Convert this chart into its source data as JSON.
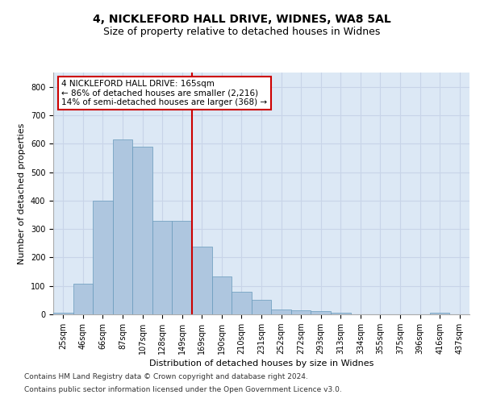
{
  "title": "4, NICKLEFORD HALL DRIVE, WIDNES, WA8 5AL",
  "subtitle": "Size of property relative to detached houses in Widnes",
  "xlabel": "Distribution of detached houses by size in Widnes",
  "ylabel": "Number of detached properties",
  "categories": [
    "25sqm",
    "46sqm",
    "66sqm",
    "87sqm",
    "107sqm",
    "128sqm",
    "149sqm",
    "169sqm",
    "190sqm",
    "210sqm",
    "231sqm",
    "252sqm",
    "272sqm",
    "293sqm",
    "313sqm",
    "334sqm",
    "355sqm",
    "375sqm",
    "396sqm",
    "416sqm",
    "437sqm"
  ],
  "values": [
    5,
    107,
    400,
    615,
    590,
    328,
    328,
    237,
    133,
    78,
    50,
    18,
    13,
    12,
    5,
    0,
    0,
    0,
    0,
    7,
    0
  ],
  "bar_color": "#aec6df",
  "bar_edge_color": "#6699bb",
  "vline_pos": 6.5,
  "annotation_line1": "4 NICKLEFORD HALL DRIVE: 165sqm",
  "annotation_line2": "← 86% of detached houses are smaller (2,216)",
  "annotation_line3": "14% of semi-detached houses are larger (368) →",
  "annotation_box_color": "#ffffff",
  "annotation_box_edge_color": "#cc0000",
  "vline_color": "#cc0000",
  "ylim": [
    0,
    850
  ],
  "yticks": [
    0,
    100,
    200,
    300,
    400,
    500,
    600,
    700,
    800
  ],
  "grid_color": "#c8d4e8",
  "background_color": "#dce8f5",
  "footer_line1": "Contains HM Land Registry data © Crown copyright and database right 2024.",
  "footer_line2": "Contains public sector information licensed under the Open Government Licence v3.0.",
  "title_fontsize": 10,
  "subtitle_fontsize": 9,
  "axis_label_fontsize": 8,
  "tick_fontsize": 7,
  "footer_fontsize": 6.5,
  "annotation_fontsize": 7.5
}
